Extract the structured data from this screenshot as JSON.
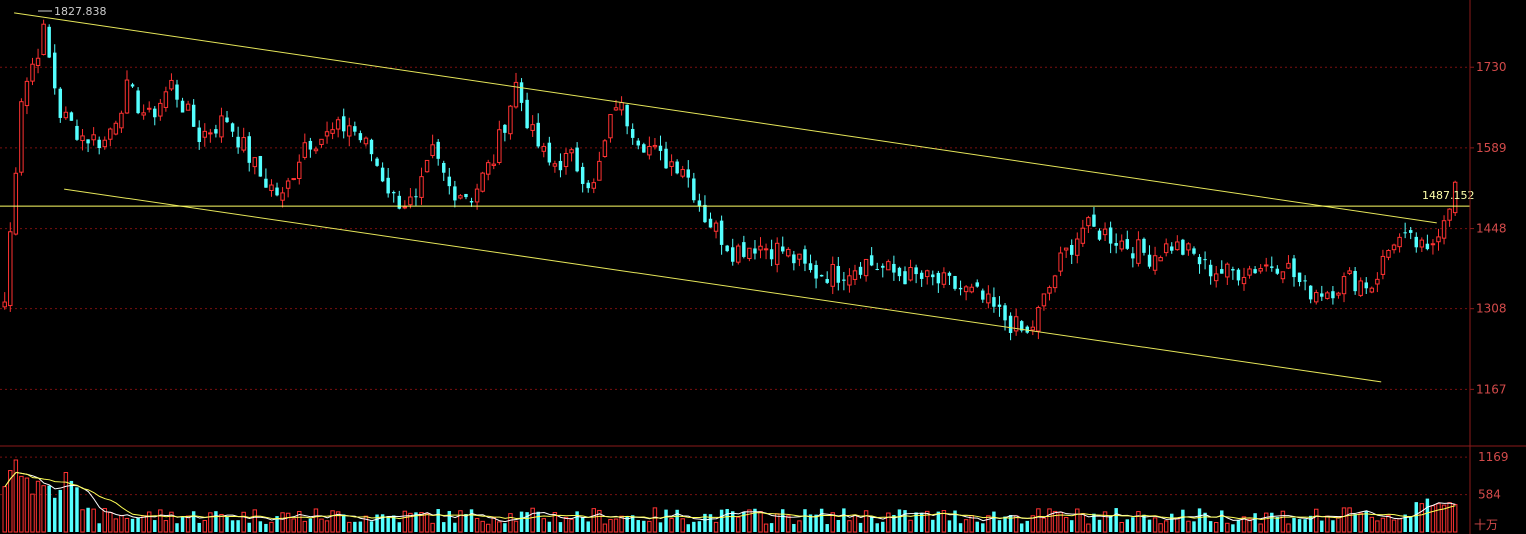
{
  "chart_data": {
    "type": "candlestick",
    "price_axis": {
      "ticks": [
        1730,
        1589,
        1448,
        1308,
        1167
      ],
      "min": 1075,
      "max": 1830
    },
    "volume_axis": {
      "ticks": [
        1169,
        584
      ],
      "unit": "十万",
      "max": 1250
    },
    "annotations": {
      "high_label": "1827.838",
      "level_label": "1487.152",
      "level_value": 1487.152
    },
    "trendlines": [
      {
        "name": "upper-channel",
        "from": {
          "bar": 2,
          "price": 1825
        },
        "to": {
          "bar": 258,
          "price": 1458
        }
      },
      {
        "name": "lower-channel",
        "from": {
          "bar": 11,
          "price": 1517
        },
        "to": {
          "bar": 248,
          "price": 1180
        }
      }
    ],
    "bars": 262,
    "keypoints": [
      [
        0,
        1320
      ],
      [
        3,
        1680
      ],
      [
        7,
        1790
      ],
      [
        10,
        1650
      ],
      [
        14,
        1610
      ],
      [
        18,
        1600
      ],
      [
        22,
        1690
      ],
      [
        26,
        1640
      ],
      [
        30,
        1700
      ],
      [
        35,
        1610
      ],
      [
        40,
        1640
      ],
      [
        46,
        1540
      ],
      [
        50,
        1500
      ],
      [
        54,
        1600
      ],
      [
        58,
        1610
      ],
      [
        62,
        1630
      ],
      [
        66,
        1580
      ],
      [
        70,
        1500
      ],
      [
        74,
        1490
      ],
      [
        77,
        1580
      ],
      [
        80,
        1520
      ],
      [
        84,
        1505
      ],
      [
        88,
        1570
      ],
      [
        92,
        1700
      ],
      [
        95,
        1610
      ],
      [
        98,
        1560
      ],
      [
        102,
        1570
      ],
      [
        106,
        1520
      ],
      [
        110,
        1670
      ],
      [
        114,
        1610
      ],
      [
        118,
        1570
      ],
      [
        122,
        1560
      ],
      [
        126,
        1470
      ],
      [
        131,
        1410
      ],
      [
        135,
        1420
      ],
      [
        140,
        1410
      ],
      [
        145,
        1370
      ],
      [
        150,
        1370
      ],
      [
        155,
        1390
      ],
      [
        160,
        1370
      ],
      [
        165,
        1360
      ],
      [
        170,
        1350
      ],
      [
        175,
        1330
      ],
      [
        180,
        1290
      ],
      [
        184,
        1260
      ],
      [
        186,
        1300
      ],
      [
        190,
        1390
      ],
      [
        194,
        1450
      ],
      [
        198,
        1440
      ],
      [
        202,
        1420
      ],
      [
        206,
        1400
      ],
      [
        210,
        1420
      ],
      [
        214,
        1400
      ],
      [
        216,
        1380
      ],
      [
        220,
        1370
      ],
      [
        225,
        1380
      ],
      [
        230,
        1390
      ],
      [
        234,
        1340
      ],
      [
        238,
        1340
      ],
      [
        242,
        1360
      ],
      [
        246,
        1350
      ],
      [
        250,
        1430
      ],
      [
        254,
        1420
      ],
      [
        256,
        1400
      ],
      [
        258,
        1450
      ],
      [
        261,
        1520
      ]
    ]
  }
}
